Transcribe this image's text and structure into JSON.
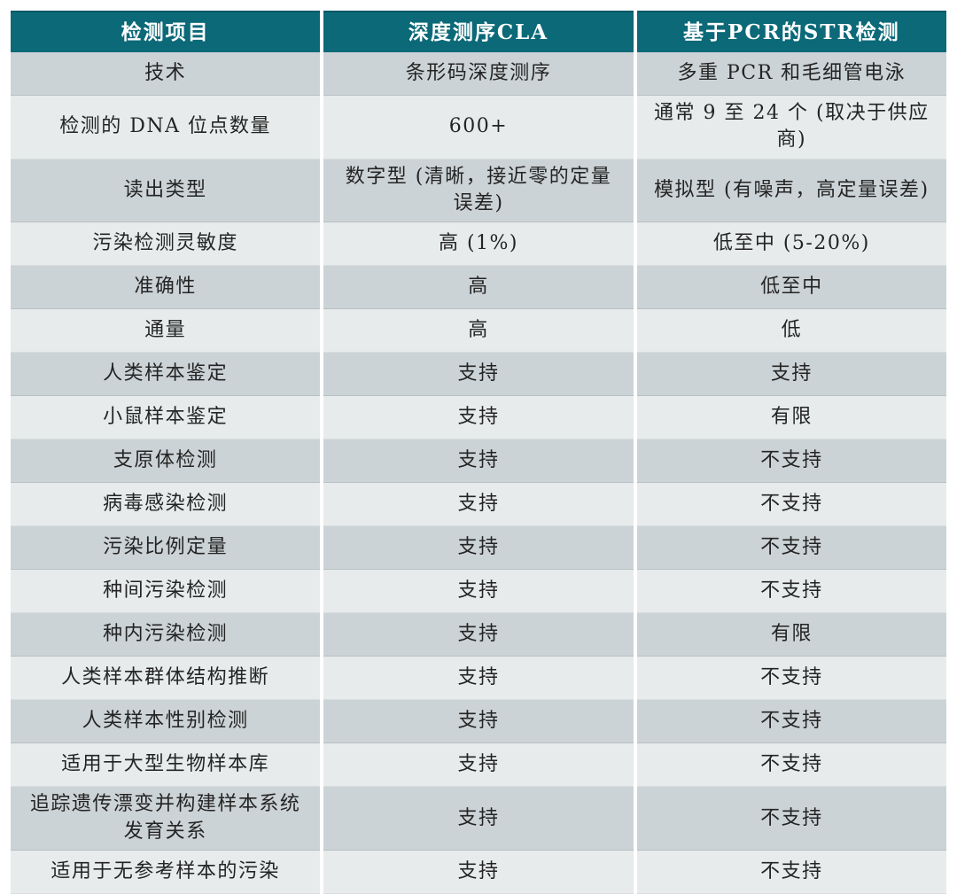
{
  "table": {
    "colors": {
      "header_bg": "#0b6978",
      "header_text": "#ffffff",
      "row_dark": "#ccd3d6",
      "row_light": "#e7ebec",
      "text": "#242424"
    },
    "columns": [
      {
        "label": "检测项目"
      },
      {
        "label": "深度测序CLA"
      },
      {
        "label": "基于PCR的STR检测"
      }
    ],
    "rows": [
      {
        "item": "技术",
        "cla": "条形码深度测序",
        "str": "多重 PCR 和毛细管电泳"
      },
      {
        "item": "检测的 DNA 位点数量",
        "cla": "600+",
        "str": "通常 9 至 24 个 (取决于供应商)"
      },
      {
        "item": "读出类型",
        "cla": "数字型 (清晰，接近零的定量误差)",
        "str": "模拟型 (有噪声，高定量误差)"
      },
      {
        "item": "污染检测灵敏度",
        "cla": "高 (1%)",
        "str": "低至中 (5-20%)"
      },
      {
        "item": "准确性",
        "cla": "高",
        "str": "低至中"
      },
      {
        "item": "通量",
        "cla": "高",
        "str": "低"
      },
      {
        "item": "人类样本鉴定",
        "cla": "支持",
        "str": "支持"
      },
      {
        "item": "小鼠样本鉴定",
        "cla": "支持",
        "str": "有限"
      },
      {
        "item": "支原体检测",
        "cla": "支持",
        "str": "不支持"
      },
      {
        "item": "病毒感染检测",
        "cla": "支持",
        "str": "不支持"
      },
      {
        "item": "污染比例定量",
        "cla": "支持",
        "str": "不支持"
      },
      {
        "item": "种间污染检测",
        "cla": "支持",
        "str": "不支持"
      },
      {
        "item": "种内污染检测",
        "cla": "支持",
        "str": "有限"
      },
      {
        "item": "人类样本群体结构推断",
        "cla": "支持",
        "str": "不支持"
      },
      {
        "item": "人类样本性别检测",
        "cla": "支持",
        "str": "不支持"
      },
      {
        "item": "适用于大型生物样本库",
        "cla": "支持",
        "str": "不支持"
      },
      {
        "item": "追踪遗传漂变并构建样本系统发育关系",
        "cla": "支持",
        "str": "不支持"
      },
      {
        "item": "适用于无参考样本的污染",
        "cla": "支持",
        "str": "不支持"
      }
    ]
  }
}
